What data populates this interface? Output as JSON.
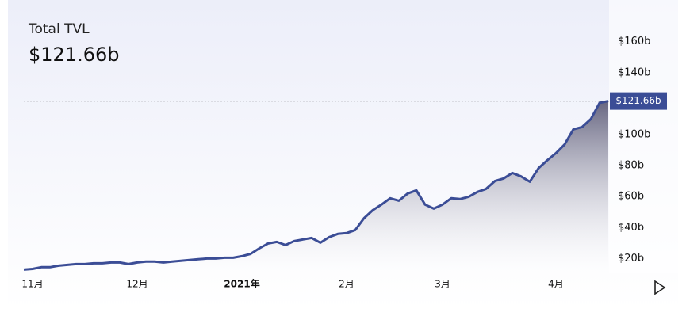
{
  "chart_data": {
    "type": "area",
    "title": "Total TVL",
    "categories": [
      null,
      "11月",
      null,
      null,
      null,
      null,
      null,
      null,
      null,
      null,
      null,
      null,
      null,
      "12月",
      null,
      null,
      null,
      null,
      null,
      null,
      null,
      null,
      null,
      null,
      null,
      "2021年",
      null,
      null,
      null,
      null,
      null,
      null,
      null,
      null,
      null,
      null,
      null,
      "2月",
      null,
      null,
      null,
      null,
      null,
      null,
      null,
      null,
      null,
      null,
      "3月",
      null,
      null,
      null,
      null,
      null,
      null,
      null,
      null,
      null,
      null,
      null,
      null,
      "4月",
      null,
      null,
      null,
      null,
      null,
      null
    ],
    "values": [
      12.8,
      13.3,
      14.4,
      14.4,
      15.4,
      15.9,
      16.4,
      16.4,
      16.9,
      16.9,
      17.4,
      17.4,
      16.4,
      17.4,
      18.0,
      18.0,
      17.4,
      18.0,
      18.5,
      19.0,
      19.5,
      20.0,
      20.0,
      20.5,
      20.5,
      21.5,
      23.0,
      26.6,
      29.7,
      30.7,
      28.7,
      31.3,
      32.3,
      33.3,
      30.2,
      33.8,
      35.9,
      36.4,
      38.4,
      46.0,
      51.2,
      54.8,
      58.9,
      57.3,
      62.0,
      64.0,
      54.8,
      52.2,
      54.8,
      58.9,
      58.4,
      59.9,
      63.0,
      65.0,
      70.0,
      71.7,
      75.2,
      73.0,
      69.6,
      78.3,
      83.4,
      88.0,
      93.7,
      103.4,
      104.9,
      110.0,
      120.5,
      121.66
    ],
    "value_labels": [
      null,
      null,
      null,
      null,
      null,
      null,
      null,
      null,
      null,
      null,
      null,
      null,
      null,
      null,
      null,
      null,
      null,
      null,
      null,
      null,
      null,
      null,
      null,
      null,
      null,
      null,
      null,
      null,
      null,
      null,
      null,
      null,
      null,
      null,
      null,
      null,
      null,
      null,
      null,
      null,
      null,
      null,
      null,
      null,
      null,
      null,
      null,
      null,
      null,
      null,
      null,
      null,
      null,
      null,
      null,
      null,
      null,
      null,
      null,
      null,
      null,
      null,
      null,
      null,
      null,
      null,
      null,
      "$121.66b"
    ],
    "color": "#3b4d96",
    "ylim": [
      12,
      172
    ],
    "yticks": [
      {
        "value": 20,
        "label": "$20b"
      },
      {
        "value": 40,
        "label": "$40b"
      },
      {
        "value": 60,
        "label": "$60b"
      },
      {
        "value": 80,
        "label": "$80b"
      },
      {
        "value": 100,
        "label": "$100b"
      },
      {
        "value": 140,
        "label": "$140b"
      },
      {
        "value": 160,
        "label": "$160b"
      }
    ]
  }
}
